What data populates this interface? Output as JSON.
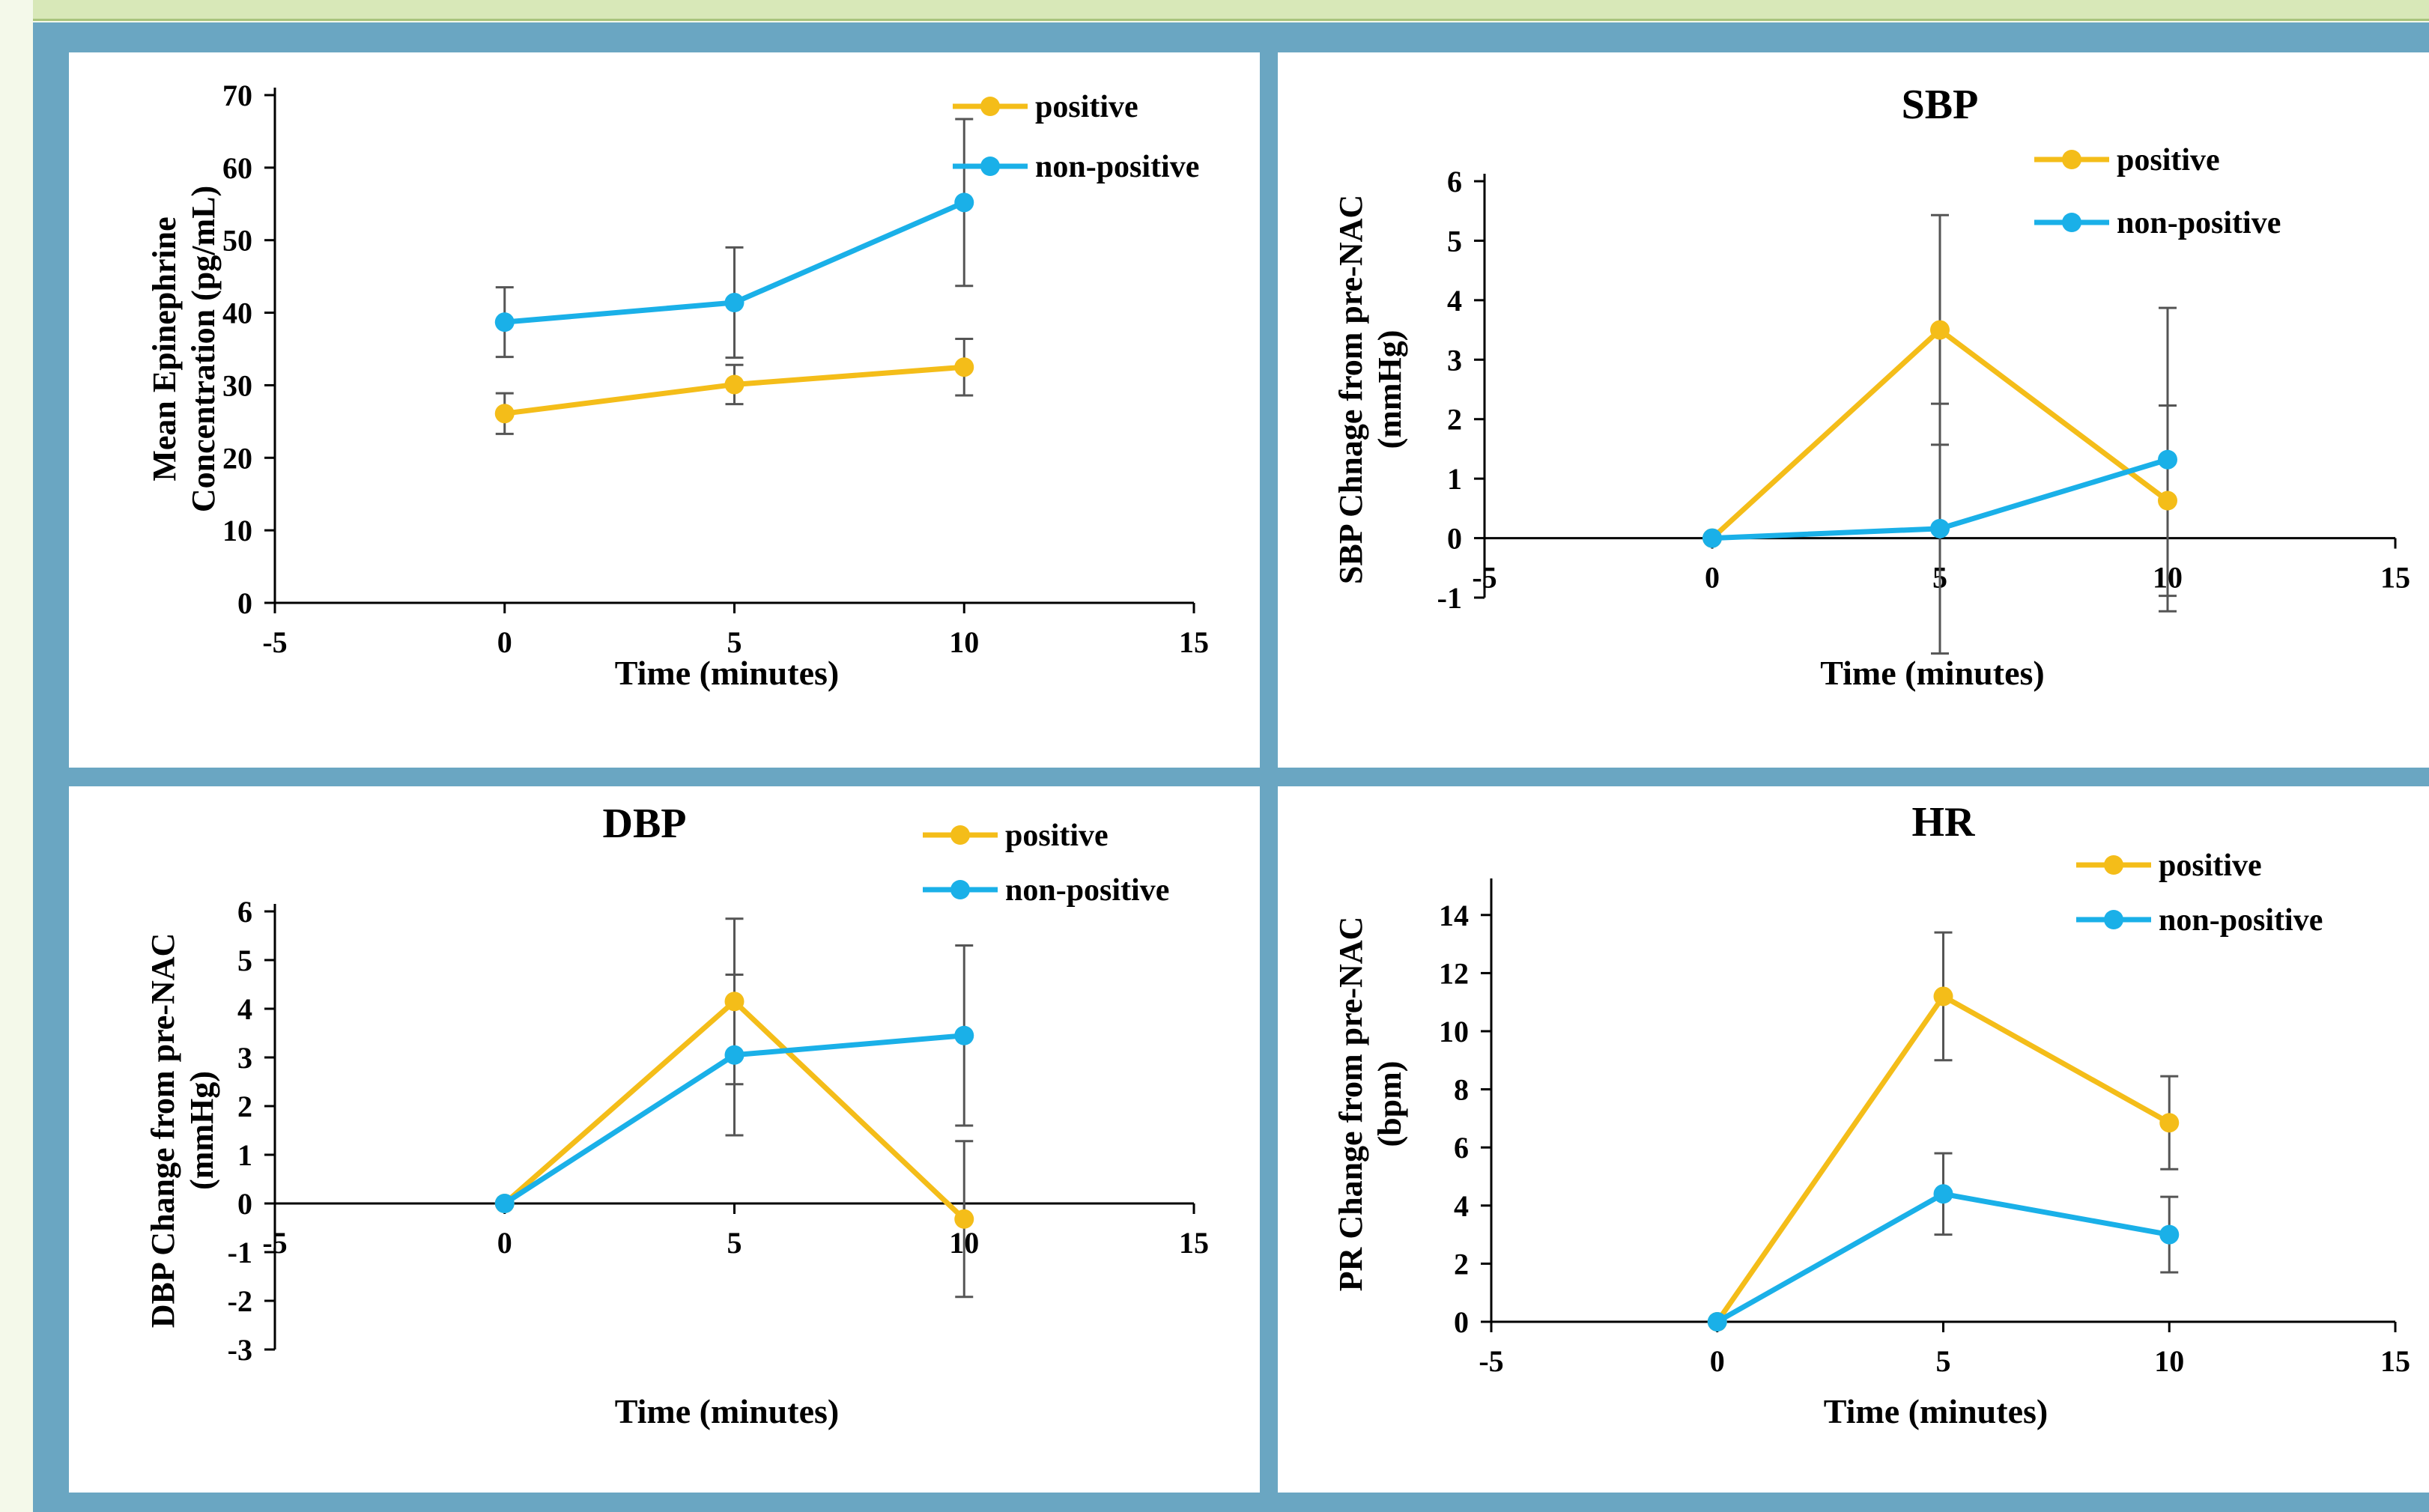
{
  "colors": {
    "positive": "#f4bd19",
    "non_positive": "#1ab0e8",
    "error_bar": "#555555"
  },
  "chart_data": [
    {
      "id": "epi",
      "type": "line",
      "title": "",
      "xlabel": "Time (minutes)",
      "ylabel": [
        "Mean Epinephrine",
        "Concentration (pg/mL)"
      ],
      "xlim": [
        -5,
        15
      ],
      "ylim": [
        0,
        70
      ],
      "xticks": [
        -5,
        0,
        5,
        10,
        15
      ],
      "yticks": [
        0,
        10,
        20,
        30,
        40,
        50,
        60,
        70
      ],
      "x": [
        0,
        5,
        10
      ],
      "legend": "top-right",
      "series": [
        {
          "name": "positive",
          "color": "#f4bd19",
          "values": [
            26.1,
            30.1,
            32.5
          ],
          "errors": [
            2.8,
            2.7,
            3.9
          ]
        },
        {
          "name": "non-positive",
          "color": "#1ab0e8",
          "values": [
            38.7,
            41.4,
            55.2
          ],
          "errors": [
            4.8,
            7.6,
            11.5
          ]
        }
      ]
    },
    {
      "id": "sbp",
      "type": "line",
      "title": "SBP",
      "xlabel": "Time (minutes)",
      "ylabel": [
        "SBP Chnage from pre-NAC",
        "(mmHg)"
      ],
      "xlim": [
        -5,
        15
      ],
      "ylim": [
        -1,
        6
      ],
      "xticks": [
        -5,
        0,
        5,
        10,
        15
      ],
      "yticks": [
        -1,
        0,
        1,
        2,
        3,
        4,
        5,
        6
      ],
      "x": [
        0,
        5,
        10
      ],
      "legend": "top-right",
      "series": [
        {
          "name": "positive",
          "color": "#f4bd19",
          "values": [
            0,
            3.5,
            0.63
          ],
          "errors": [
            0,
            1.93,
            1.6
          ]
        },
        {
          "name": "non-positive",
          "color": "#1ab0e8",
          "values": [
            0,
            0.16,
            1.32
          ],
          "errors": [
            0,
            2.1,
            2.55
          ]
        }
      ]
    },
    {
      "id": "dbp",
      "type": "line",
      "title": "DBP",
      "xlabel": "Time (minutes)",
      "ylabel": [
        "DBP Change from pre-NAC",
        "(mmHg)"
      ],
      "xlim": [
        -5,
        15
      ],
      "ylim": [
        -3,
        6
      ],
      "xticks": [
        -5,
        0,
        5,
        10,
        15
      ],
      "yticks": [
        -3,
        -2,
        -1,
        0,
        1,
        2,
        3,
        4,
        5,
        6
      ],
      "x": [
        0,
        5,
        10
      ],
      "legend": "top-right",
      "series": [
        {
          "name": "positive",
          "color": "#f4bd19",
          "values": [
            0,
            4.15,
            -0.32
          ],
          "errors": [
            0,
            1.7,
            1.6
          ]
        },
        {
          "name": "non-positive",
          "color": "#1ab0e8",
          "values": [
            0,
            3.05,
            3.45
          ],
          "errors": [
            0,
            1.65,
            1.85
          ]
        }
      ]
    },
    {
      "id": "hr",
      "type": "line",
      "title": "HR",
      "xlabel": "Time (minutes)",
      "ylabel": [
        "PR Change from pre-NAC",
        "(bpm)"
      ],
      "xlim": [
        -5,
        15
      ],
      "ylim": [
        0,
        15
      ],
      "xticks": [
        -5,
        0,
        5,
        10,
        15
      ],
      "yticks": [
        0,
        2,
        4,
        6,
        8,
        10,
        12,
        14
      ],
      "x": [
        0,
        5,
        10
      ],
      "legend": "top-right",
      "series": [
        {
          "name": "positive",
          "color": "#f4bd19",
          "values": [
            0,
            11.2,
            6.85
          ],
          "errors": [
            0,
            2.2,
            1.6
          ]
        },
        {
          "name": "non-positive",
          "color": "#1ab0e8",
          "values": [
            0,
            4.4,
            3.0
          ],
          "errors": [
            0,
            1.4,
            1.3
          ]
        }
      ]
    }
  ]
}
